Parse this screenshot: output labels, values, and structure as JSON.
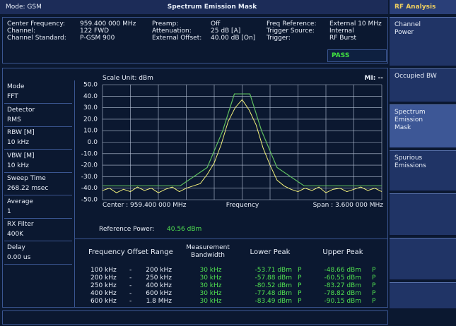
{
  "header": {
    "mode": "Mode: GSM",
    "title": "Spectrum Emission Mask",
    "menu_title": "RF Analysis"
  },
  "info": {
    "rows": [
      [
        "Center Frequency:",
        "959.400 000 MHz",
        "Preamp:",
        "Off",
        "Freq Reference:",
        "External 10 MHz"
      ],
      [
        "Channel:",
        "122 FWD",
        "Attenuation:",
        "25 dB  [A]",
        "Trigger Source:",
        "Internal"
      ],
      [
        "Channel Standard:",
        "P-GSM 900",
        "External Offset:",
        "40.00 dB  [On]",
        "Trigger:",
        "RF Burst"
      ]
    ],
    "status": "PASS"
  },
  "sidebar": [
    {
      "label": "Mode",
      "value": "FFT"
    },
    {
      "label": "Detector",
      "value": "RMS"
    },
    {
      "label": "RBW [M]",
      "value": "10 kHz"
    },
    {
      "label": "VBW [M]",
      "value": "10 kHz"
    },
    {
      "label": "Sweep Time",
      "value": "268.22 msec"
    },
    {
      "label": "Average",
      "value": "1"
    },
    {
      "label": "RX Filter",
      "value": "400K"
    },
    {
      "label": "Delay",
      "value": "0.00 us"
    }
  ],
  "menu": [
    "Channel Power",
    "Occupied BW",
    "Spectrum Emission Mask",
    "Spurious Emissions"
  ],
  "plot": {
    "scale_unit": "Scale Unit: dBm",
    "marker": "MI: --",
    "center": "Center : 959.400 000 MHz",
    "xlabel": "Frequency",
    "span": "Span : 3.600 000 MHz",
    "ylim": [
      -50,
      50
    ],
    "yticks": [
      {
        "value": 50,
        "label": "50.0"
      },
      {
        "value": 40,
        "label": "40.0"
      },
      {
        "value": 30,
        "label": "30.0"
      },
      {
        "value": 20,
        "label": "20.0"
      },
      {
        "value": 10,
        "label": "10.0"
      },
      {
        "value": 0,
        "label": "0.0"
      },
      {
        "value": -10,
        "label": "-10.0"
      },
      {
        "value": -20,
        "label": "-20.0"
      },
      {
        "value": -30,
        "label": "-30.0"
      },
      {
        "value": -40,
        "label": "-40.0"
      },
      {
        "value": -50,
        "label": "-50.0"
      }
    ],
    "xlim": [
      -1.8,
      1.8
    ],
    "mask": {
      "x": [
        -1.8,
        -0.8,
        -0.45,
        -0.25,
        -0.1,
        0.1,
        0.25,
        0.45,
        0.8,
        1.8
      ],
      "values": [
        -38,
        -38,
        -22,
        10,
        42,
        42,
        10,
        -22,
        -38,
        -38
      ]
    },
    "trace": {
      "values": [
        -42,
        -40,
        -44,
        -41,
        -43,
        -39,
        -42,
        -40,
        -44,
        -41,
        -39,
        -43,
        -40,
        -38,
        -36,
        -28,
        -18,
        -2,
        18,
        30,
        37,
        28,
        15,
        -5,
        -20,
        -33,
        -38,
        -41,
        -43,
        -40,
        -42,
        -39,
        -44,
        -41,
        -40,
        -43,
        -41,
        -39,
        -42,
        -40,
        -43
      ]
    }
  },
  "reference": {
    "label": "Reference Power:",
    "value": "40.56 dBm"
  },
  "table": {
    "headers": [
      "Frequency Offset Range",
      "Measurement Bandwidth",
      "Lower Peak",
      "Upper Peak"
    ],
    "rows": [
      [
        "100 kHz",
        "-",
        "200 kHz",
        "30 kHz",
        "-53.71 dBm",
        "P",
        "-48.66 dBm",
        "P"
      ],
      [
        "200 kHz",
        "-",
        "250 kHz",
        "30 kHz",
        "-57.88 dBm",
        "P",
        "-60.55 dBm",
        "P"
      ],
      [
        "250 kHz",
        "-",
        "400 kHz",
        "30 kHz",
        "-80.52 dBm",
        "P",
        "-83.27 dBm",
        "P"
      ],
      [
        "400 kHz",
        "-",
        "600 kHz",
        "30 kHz",
        "-77.48 dBm",
        "P",
        "-78.82 dBm",
        "P"
      ],
      [
        "600 kHz",
        "-",
        "1.8 MHz",
        "30 kHz",
        "-83.49 dBm",
        "P",
        "-90.15 dBm",
        "P"
      ]
    ]
  }
}
